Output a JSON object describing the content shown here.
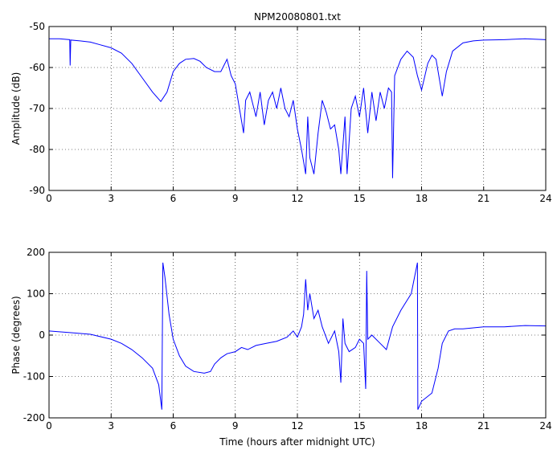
{
  "chart_data": [
    {
      "type": "line",
      "title": "NPM20080801.txt",
      "y_label": "Amplitude (dB)",
      "x": [
        0,
        0.5,
        1.0,
        1.02,
        1.05,
        1.5,
        2,
        2.5,
        3,
        3.5,
        4,
        4.5,
        5,
        5.4,
        5.7,
        6,
        6.3,
        6.6,
        7,
        7.3,
        7.6,
        8,
        8.3,
        8.6,
        8.8,
        9,
        9.2,
        9.4,
        9.5,
        9.7,
        10,
        10.2,
        10.4,
        10.6,
        10.8,
        11,
        11.2,
        11.4,
        11.6,
        11.8,
        12,
        12.2,
        12.4,
        12.5,
        12.6,
        12.8,
        13,
        13.2,
        13.4,
        13.6,
        13.8,
        14,
        14.1,
        14.3,
        14.4,
        14.6,
        14.8,
        15,
        15.2,
        15.4,
        15.6,
        15.8,
        16,
        16.2,
        16.4,
        16.55,
        16.6,
        16.7,
        17,
        17.3,
        17.6,
        17.8,
        18,
        18.3,
        18.5,
        18.7,
        18.9,
        19,
        19.2,
        19.5,
        20,
        20.5,
        21,
        22,
        23,
        24
      ],
      "values": [
        -53,
        -53,
        -53.2,
        -59.5,
        -53.3,
        -53.5,
        -53.8,
        -54.5,
        -55.2,
        -56.5,
        -59,
        -62.5,
        -66,
        -68.3,
        -66,
        -61,
        -59,
        -58,
        -57.8,
        -58.5,
        -60,
        -61,
        -61,
        -58,
        -62,
        -64,
        -70,
        -76,
        -68,
        -66,
        -72,
        -66,
        -74,
        -68,
        -66,
        -70,
        -65,
        -70,
        -72,
        -68,
        -75,
        -80,
        -86,
        -72,
        -82,
        -86,
        -76,
        -68,
        -71,
        -75,
        -74,
        -80,
        -86,
        -72,
        -86,
        -70,
        -67,
        -72,
        -65,
        -76,
        -66,
        -73,
        -66,
        -70,
        -65,
        -66,
        -87,
        -62,
        -58,
        -56,
        -57.5,
        -62,
        -65.5,
        -59,
        -57,
        -58,
        -64,
        -67,
        -61,
        -56,
        -54,
        -53.5,
        -53.3,
        -53.2,
        -53,
        -53.2
      ],
      "color": "#0000ff",
      "xlim": [
        0,
        24
      ],
      "xticks": [
        0,
        3,
        6,
        9,
        12,
        15,
        18,
        21,
        24
      ],
      "ylim": [
        -90,
        -50
      ],
      "yticks": [
        -90,
        -80,
        -70,
        -60,
        -50
      ],
      "grid": true
    },
    {
      "type": "line",
      "x_label": "Time (hours after midnight UTC)",
      "y_label": "Phase (degrees)",
      "x": [
        0,
        1,
        2,
        3,
        3.5,
        4,
        4.5,
        5,
        5.3,
        5.45,
        5.5,
        5.6,
        5.8,
        6,
        6.3,
        6.6,
        7,
        7.5,
        7.8,
        8,
        8.3,
        8.6,
        9,
        9.3,
        9.6,
        10,
        10.5,
        11,
        11.5,
        11.8,
        12,
        12.2,
        12.3,
        12.4,
        12.5,
        12.6,
        12.8,
        13,
        13.2,
        13.5,
        13.8,
        14,
        14.1,
        14.2,
        14.3,
        14.5,
        14.8,
        15,
        15.2,
        15.3,
        15.35,
        15.4,
        15.6,
        16,
        16.3,
        16.6,
        17,
        17.5,
        17.8,
        17.82,
        18,
        18.5,
        18.8,
        19,
        19.3,
        19.6,
        20,
        21,
        22,
        23,
        24
      ],
      "values": [
        10,
        6,
        2,
        -10,
        -20,
        -35,
        -55,
        -80,
        -120,
        -180,
        175,
        140,
        50,
        -10,
        -50,
        -75,
        -88,
        -92,
        -88,
        -70,
        -55,
        -45,
        -40,
        -30,
        -35,
        -25,
        -20,
        -15,
        -5,
        10,
        -5,
        20,
        50,
        135,
        60,
        100,
        40,
        60,
        20,
        -20,
        10,
        -40,
        -115,
        40,
        -20,
        -40,
        -30,
        -10,
        -20,
        -130,
        155,
        -10,
        0,
        -20,
        -35,
        20,
        60,
        100,
        175,
        -180,
        -160,
        -140,
        -80,
        -20,
        10,
        15,
        15,
        20,
        20,
        23,
        22
      ],
      "color": "#0000ff",
      "xlim": [
        0,
        24
      ],
      "xticks": [
        0,
        3,
        6,
        9,
        12,
        15,
        18,
        21,
        24
      ],
      "ylim": [
        -200,
        200
      ],
      "yticks": [
        -200,
        -100,
        0,
        100,
        200
      ],
      "grid": true
    }
  ]
}
